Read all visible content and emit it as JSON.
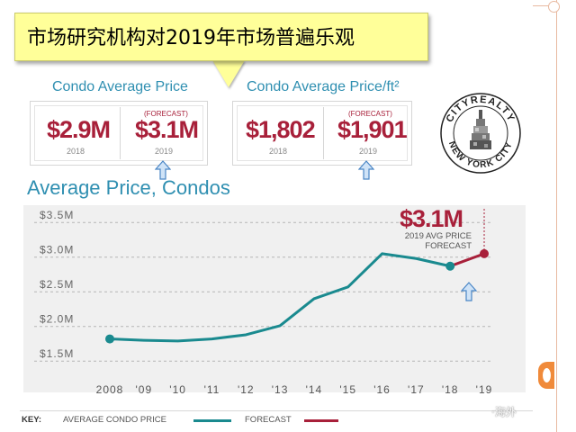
{
  "callout": {
    "text": "市场研究机构对2019年市场普遍乐观"
  },
  "panels": [
    {
      "title": "Condo Average Price",
      "left": {
        "value": "$2.9M",
        "year": "2018"
      },
      "right": {
        "tag": "(FORECAST)",
        "value": "$3.1M",
        "year": "2019"
      }
    },
    {
      "title": "Condo Average Price/ft²",
      "left": {
        "value": "$1,802",
        "year": "2018"
      },
      "right": {
        "tag": "(FORECAST)",
        "value": "$1,901",
        "year": "2019"
      }
    }
  ],
  "logo": {
    "top_text": "CITYREALTY",
    "bottom_text": "NEW YORK CITY"
  },
  "chart_title": "Average Price, Condos",
  "annotation": {
    "value": "$3.1M",
    "line1": "2019 AVG PRICE",
    "line2": "FORECAST"
  },
  "key": {
    "label": "KEY:",
    "avg": "AVERAGE CONDO PRICE",
    "forecast": "FORECAST"
  },
  "watermark": "·海外",
  "colors": {
    "teal": "#1a8a8f",
    "forecast": "#a8203a",
    "title_blue": "#2f8fb1",
    "callout_yellow": "#ffff99"
  },
  "chart_data": {
    "type": "line",
    "title": "Average Price, Condos",
    "x_tick_labels": [
      "2008",
      "'09",
      "'10",
      "'11",
      "'12",
      "'13",
      "'14",
      "'15",
      "'16",
      "'17",
      "'18",
      "'19"
    ],
    "y_tick_labels": [
      "$1.5M",
      "$2.0M",
      "$2.5M",
      "$3.0M",
      "$3.5M"
    ],
    "y_ticks": [
      1.5,
      2.0,
      2.5,
      3.0,
      3.5
    ],
    "ylim": [
      1.1,
      3.75
    ],
    "xlim": [
      2008,
      2019
    ],
    "grid": true,
    "series": [
      {
        "name": "AVERAGE CONDO PRICE",
        "color": "#1a8a8f",
        "x": [
          2008,
          2009,
          2010,
          2011,
          2012,
          2013,
          2014,
          2015,
          2016,
          2017,
          2018
        ],
        "y": [
          1.82,
          1.8,
          1.79,
          1.82,
          1.88,
          2.01,
          2.4,
          2.57,
          3.05,
          2.98,
          2.87
        ]
      },
      {
        "name": "FORECAST",
        "color": "#a8203a",
        "x": [
          2018,
          2019
        ],
        "y": [
          2.87,
          3.05
        ]
      }
    ]
  }
}
